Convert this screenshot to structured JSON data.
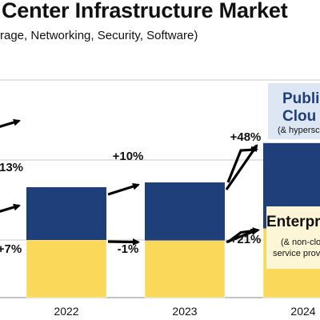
{
  "chart_data": {
    "type": "bar",
    "stacked": true,
    "title": "Center Infrastructure Market",
    "subtitle": "rage, Networking, Security, Software)",
    "categories": [
      "2022",
      "2023",
      "2024"
    ],
    "series": [
      {
        "name": "Enterpri",
        "sublabel_lines": [
          "(& non-clo",
          "service prov"
        ],
        "color": "#f9d85a",
        "values": [
          120,
          119,
          144
        ],
        "growth_labels_outside": [
          "+7%",
          "-1%",
          "+21%"
        ]
      },
      {
        "name_lines": [
          "Publi",
          "Clou"
        ],
        "sublabel": "(& hypersca",
        "color": "#1f3f7b",
        "values": [
          110,
          121,
          178
        ],
        "growth_labels_outside": [
          "13%",
          "+10%",
          "+48%"
        ]
      }
    ],
    "grid": false,
    "legend": "none",
    "colors": {
      "enterprise": "#f9d85a",
      "cloud": "#1f3f7b",
      "gridline": "#c9c9c9",
      "text": "#111111"
    }
  }
}
